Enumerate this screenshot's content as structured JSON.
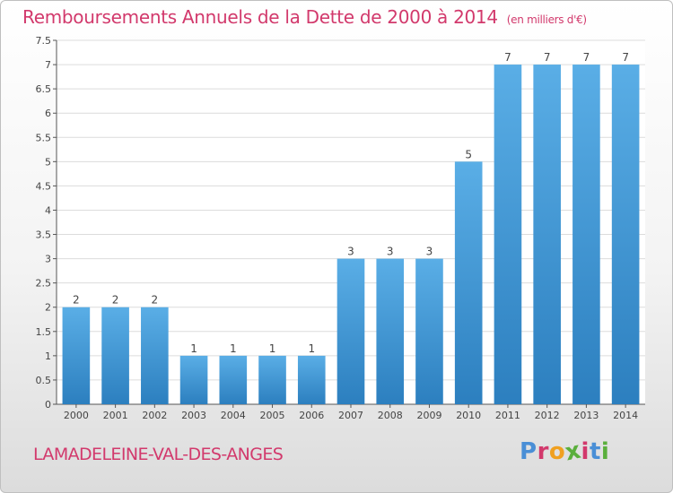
{
  "page": {
    "title": "Remboursements Annuels de la Dette de 2000 à 2014",
    "unit": "(en milliers d'€)",
    "commune": "LAMADELEINE-VAL-DES-ANGES",
    "brand": "Proxiti"
  },
  "colors": {
    "title": "#d2396c",
    "bar_light": "#5aaee6",
    "bar_dark": "#2c7fbf",
    "logo_letters": [
      "#4a8fd6",
      "#d2396c",
      "#f0a020",
      "#5aaf3c",
      "#d2396c",
      "#4a8fd6",
      "#5aaf3c"
    ]
  },
  "chart_data": {
    "type": "bar",
    "title": "Remboursements Annuels de la Dette de 2000 à 2014",
    "ylabel": "",
    "xlabel": "",
    "categories": [
      "2000",
      "2001",
      "2002",
      "2003",
      "2004",
      "2005",
      "2006",
      "2007",
      "2008",
      "2009",
      "2010",
      "2011",
      "2012",
      "2013",
      "2014"
    ],
    "values": [
      2,
      2,
      2,
      1,
      1,
      1,
      1,
      3,
      3,
      3,
      5,
      7,
      7,
      7,
      7
    ],
    "data_labels": [
      "2",
      "2",
      "2",
      "1",
      "1",
      "1",
      "1",
      "3",
      "3",
      "3",
      "5",
      "7",
      "7",
      "7",
      "7"
    ],
    "ylim": [
      0,
      7.5
    ],
    "yticks": [
      "0",
      "0.5",
      "1",
      "1.5",
      "2",
      "2.5",
      "3",
      "3.5",
      "4",
      "4.5",
      "5",
      "5.5",
      "6",
      "6.5",
      "7",
      "7.5"
    ],
    "grid": true
  }
}
